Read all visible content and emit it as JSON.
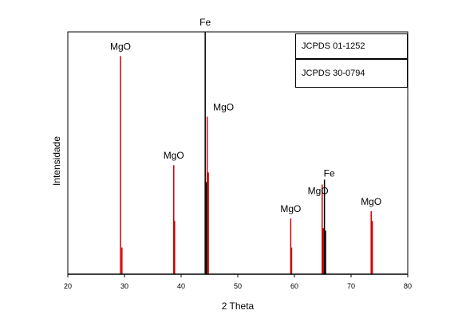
{
  "chart_data": {
    "type": "bar",
    "xlabel": "2 Theta",
    "ylabel": "Intensidade",
    "xlim": [
      20,
      80
    ],
    "ylim": [
      0,
      100
    ],
    "x_ticks": [
      20,
      30,
      40,
      50,
      60,
      70,
      80
    ],
    "grid": false,
    "legend_location": "top-right",
    "legend": [
      "JCPDS 01-1252",
      "JCPDS 30-0794"
    ],
    "series": [
      {
        "color": "#cc0000",
        "peaks": [
          {
            "x": 29.3,
            "y": 90
          },
          {
            "x": 29.55,
            "y": 11
          },
          {
            "x": 38.7,
            "y": 45
          },
          {
            "x": 38.85,
            "y": 22
          },
          {
            "x": 44.6,
            "y": 65
          },
          {
            "x": 44.8,
            "y": 42
          },
          {
            "x": 59.35,
            "y": 23
          },
          {
            "x": 59.5,
            "y": 11
          },
          {
            "x": 64.9,
            "y": 37
          },
          {
            "x": 65.1,
            "y": 19
          },
          {
            "x": 73.55,
            "y": 26
          },
          {
            "x": 73.75,
            "y": 22
          }
        ]
      },
      {
        "color": "#000000",
        "peaks": [
          {
            "x": 44.25,
            "y": 100
          },
          {
            "x": 44.45,
            "y": 38
          },
          {
            "x": 65.3,
            "y": 39
          },
          {
            "x": 65.5,
            "y": 18
          }
        ]
      }
    ],
    "annotations": [
      {
        "text": "MgO",
        "x": 29.3,
        "y": 90
      },
      {
        "text": "MgO",
        "x": 38.7,
        "y": 45
      },
      {
        "text": "Fe",
        "x": 44.25,
        "y": 100
      },
      {
        "text": "MgO",
        "x": 44.8,
        "y": 65
      },
      {
        "text": "MgO",
        "x": 59.35,
        "y": 23
      },
      {
        "text": "MgO",
        "x": 64.6,
        "y": 37
      },
      {
        "text": "Fe",
        "x": 65.3,
        "y": 39
      },
      {
        "text": "MgO",
        "x": 73.55,
        "y": 26
      }
    ]
  }
}
